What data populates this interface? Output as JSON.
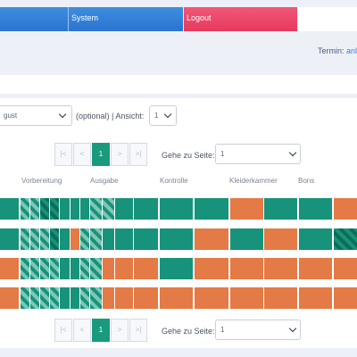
{
  "nav": {
    "system_label": "System",
    "logout_label": "Logout"
  },
  "termin": {
    "label": "Termin:",
    "link": "anl"
  },
  "filter": {
    "month_value": "gust",
    "optional_text": "(optional) | Ansicht:",
    "view_value": "1"
  },
  "pagination": {
    "first": "|<",
    "prev": "<",
    "current": "1",
    "next": ">",
    "last": ">|",
    "goto_label": "Gehe zu Seite:",
    "goto_value": "1"
  },
  "headers": [
    "Vorbereitung",
    "Ausgabe",
    "Kontrolle",
    "Kleiderkammer",
    "Bons"
  ],
  "colors": {
    "green": "#16937a",
    "orange": "#e47a45",
    "blue": "#2b74cf",
    "red": "#e5395d"
  },
  "rows": [
    [
      "g",
      "s",
      "s",
      "sd",
      "sd",
      "g",
      "g",
      "g",
      "s",
      "s",
      "g",
      "g",
      "g",
      "g",
      "o",
      "g",
      "g",
      "g",
      "o"
    ],
    [
      "g",
      "s",
      "s",
      "s",
      "sd",
      "g",
      "o",
      "s",
      "s",
      "g",
      "g",
      "g",
      "g",
      "o",
      "g",
      "o",
      "g",
      "sd",
      "sd"
    ],
    [
      "o",
      "s",
      "s",
      "s",
      "s",
      "g",
      "g",
      "s",
      "s",
      "o",
      "o",
      "o",
      "g",
      "o",
      "o",
      "o",
      "o",
      "g",
      "o"
    ],
    [
      "o",
      "s",
      "s",
      "s",
      "s",
      "g",
      "g",
      "s",
      "s",
      "o",
      "o",
      "o",
      "o",
      "o",
      "o",
      "o",
      "o",
      "o",
      "o"
    ]
  ]
}
